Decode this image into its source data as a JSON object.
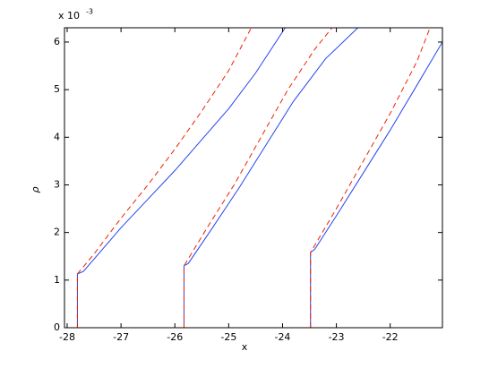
{
  "chart_data": {
    "type": "line",
    "x_label": "x",
    "y_label": "ρ",
    "y_multiplier": {
      "base": "x 10",
      "exponent": "-3"
    },
    "xlim": [
      -28.05,
      -21.03
    ],
    "xticks": [
      -28,
      -27,
      -26,
      -25,
      -24,
      -23,
      -22
    ],
    "ylim": [
      0,
      6.3
    ],
    "yticks": [
      0,
      1,
      2,
      3,
      4,
      5,
      6
    ],
    "grid": false,
    "box": true,
    "series": [
      {
        "color": "#2244ee",
        "linestyle": "solid",
        "x": [
          -27.81,
          -27.81,
          -27.7,
          -27,
          -26.5,
          -26,
          -25.5,
          -25,
          -24.5,
          -23.95
        ],
        "values": [
          0,
          1.13,
          1.18,
          2.1,
          2.7,
          3.3,
          3.95,
          4.6,
          5.35,
          6.3
        ]
      },
      {
        "color": "#ee2200",
        "linestyle": "dashed",
        "x": [
          -27.81,
          -27.81,
          -27.5,
          -27,
          -26.5,
          -26,
          -25.5,
          -25,
          -24.58
        ],
        "values": [
          0,
          1.13,
          1.55,
          2.3,
          3.0,
          3.75,
          4.55,
          5.4,
          6.3
        ]
      },
      {
        "color": "#2244ee",
        "linestyle": "solid",
        "x": [
          -25.83,
          -25.83,
          -25.75,
          -25.3,
          -24.8,
          -24.3,
          -23.8,
          -23.2,
          -22.6
        ],
        "values": [
          0,
          1.3,
          1.35,
          2.1,
          2.95,
          3.85,
          4.75,
          5.65,
          6.3
        ]
      },
      {
        "color": "#ee2200",
        "linestyle": "dashed",
        "x": [
          -25.83,
          -25.83,
          -25.4,
          -24.9,
          -24.4,
          -23.9,
          -23.4,
          -23.08
        ],
        "values": [
          0,
          1.3,
          2.1,
          3.0,
          4.0,
          5.0,
          5.85,
          6.3
        ]
      },
      {
        "color": "#2244ee",
        "linestyle": "solid",
        "x": [
          -23.48,
          -23.48,
          -23.4,
          -23,
          -22.5,
          -22,
          -21.5,
          -21.03
        ],
        "values": [
          0,
          1.58,
          1.65,
          2.35,
          3.25,
          4.15,
          5.1,
          6.0
        ]
      },
      {
        "color": "#ee2200",
        "linestyle": "dashed",
        "x": [
          -23.48,
          -23.48,
          -23,
          -22.5,
          -22,
          -21.5,
          -21.26
        ],
        "values": [
          0,
          1.58,
          2.5,
          3.5,
          4.5,
          5.6,
          6.3
        ]
      }
    ]
  }
}
